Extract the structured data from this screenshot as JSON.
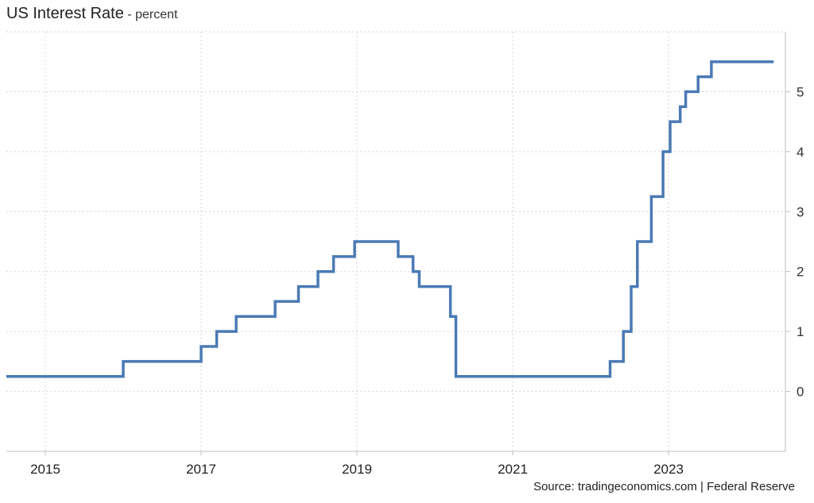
{
  "title": "US Interest Rate",
  "subtitle": "- percent",
  "source": "Source: tradingeconomics.com | Federal Reserve",
  "colors": {
    "line": "#4a7ab5",
    "grid": "#d6d6d6",
    "axis": "#bdbdbd"
  },
  "chart_data": {
    "type": "line",
    "step": true,
    "grid": true,
    "xlim": [
      2014.5,
      2024.5
    ],
    "ylim": [
      -1,
      6
    ],
    "x_ticks": [
      {
        "value": 2015,
        "label": "2015"
      },
      {
        "value": 2017,
        "label": "2017"
      },
      {
        "value": 2019,
        "label": "2019"
      },
      {
        "value": 2021,
        "label": "2021"
      },
      {
        "value": 2023,
        "label": "2023"
      }
    ],
    "y_ticks": [
      {
        "value": 0,
        "label": "0"
      },
      {
        "value": 1,
        "label": "1"
      },
      {
        "value": 2,
        "label": "2"
      },
      {
        "value": 3,
        "label": "3"
      },
      {
        "value": 4,
        "label": "4"
      },
      {
        "value": 5,
        "label": "5"
      }
    ],
    "series": [
      {
        "points": [
          [
            2014.5,
            0.25
          ],
          [
            2016.0,
            0.5
          ],
          [
            2017.0,
            0.75
          ],
          [
            2017.2,
            1.0
          ],
          [
            2017.45,
            1.25
          ],
          [
            2017.95,
            1.5
          ],
          [
            2018.25,
            1.75
          ],
          [
            2018.5,
            2.0
          ],
          [
            2018.7,
            2.25
          ],
          [
            2018.97,
            2.5
          ],
          [
            2019.53,
            2.25
          ],
          [
            2019.72,
            2.0
          ],
          [
            2019.8,
            1.75
          ],
          [
            2020.2,
            1.25
          ],
          [
            2020.27,
            0.25
          ],
          [
            2022.25,
            0.5
          ],
          [
            2022.42,
            1.0
          ],
          [
            2022.52,
            1.75
          ],
          [
            2022.6,
            2.5
          ],
          [
            2022.78,
            3.25
          ],
          [
            2022.93,
            4.0
          ],
          [
            2023.02,
            4.5
          ],
          [
            2023.15,
            4.75
          ],
          [
            2023.22,
            5.0
          ],
          [
            2023.38,
            5.25
          ],
          [
            2023.55,
            5.5
          ],
          [
            2024.35,
            5.5
          ]
        ]
      }
    ]
  }
}
